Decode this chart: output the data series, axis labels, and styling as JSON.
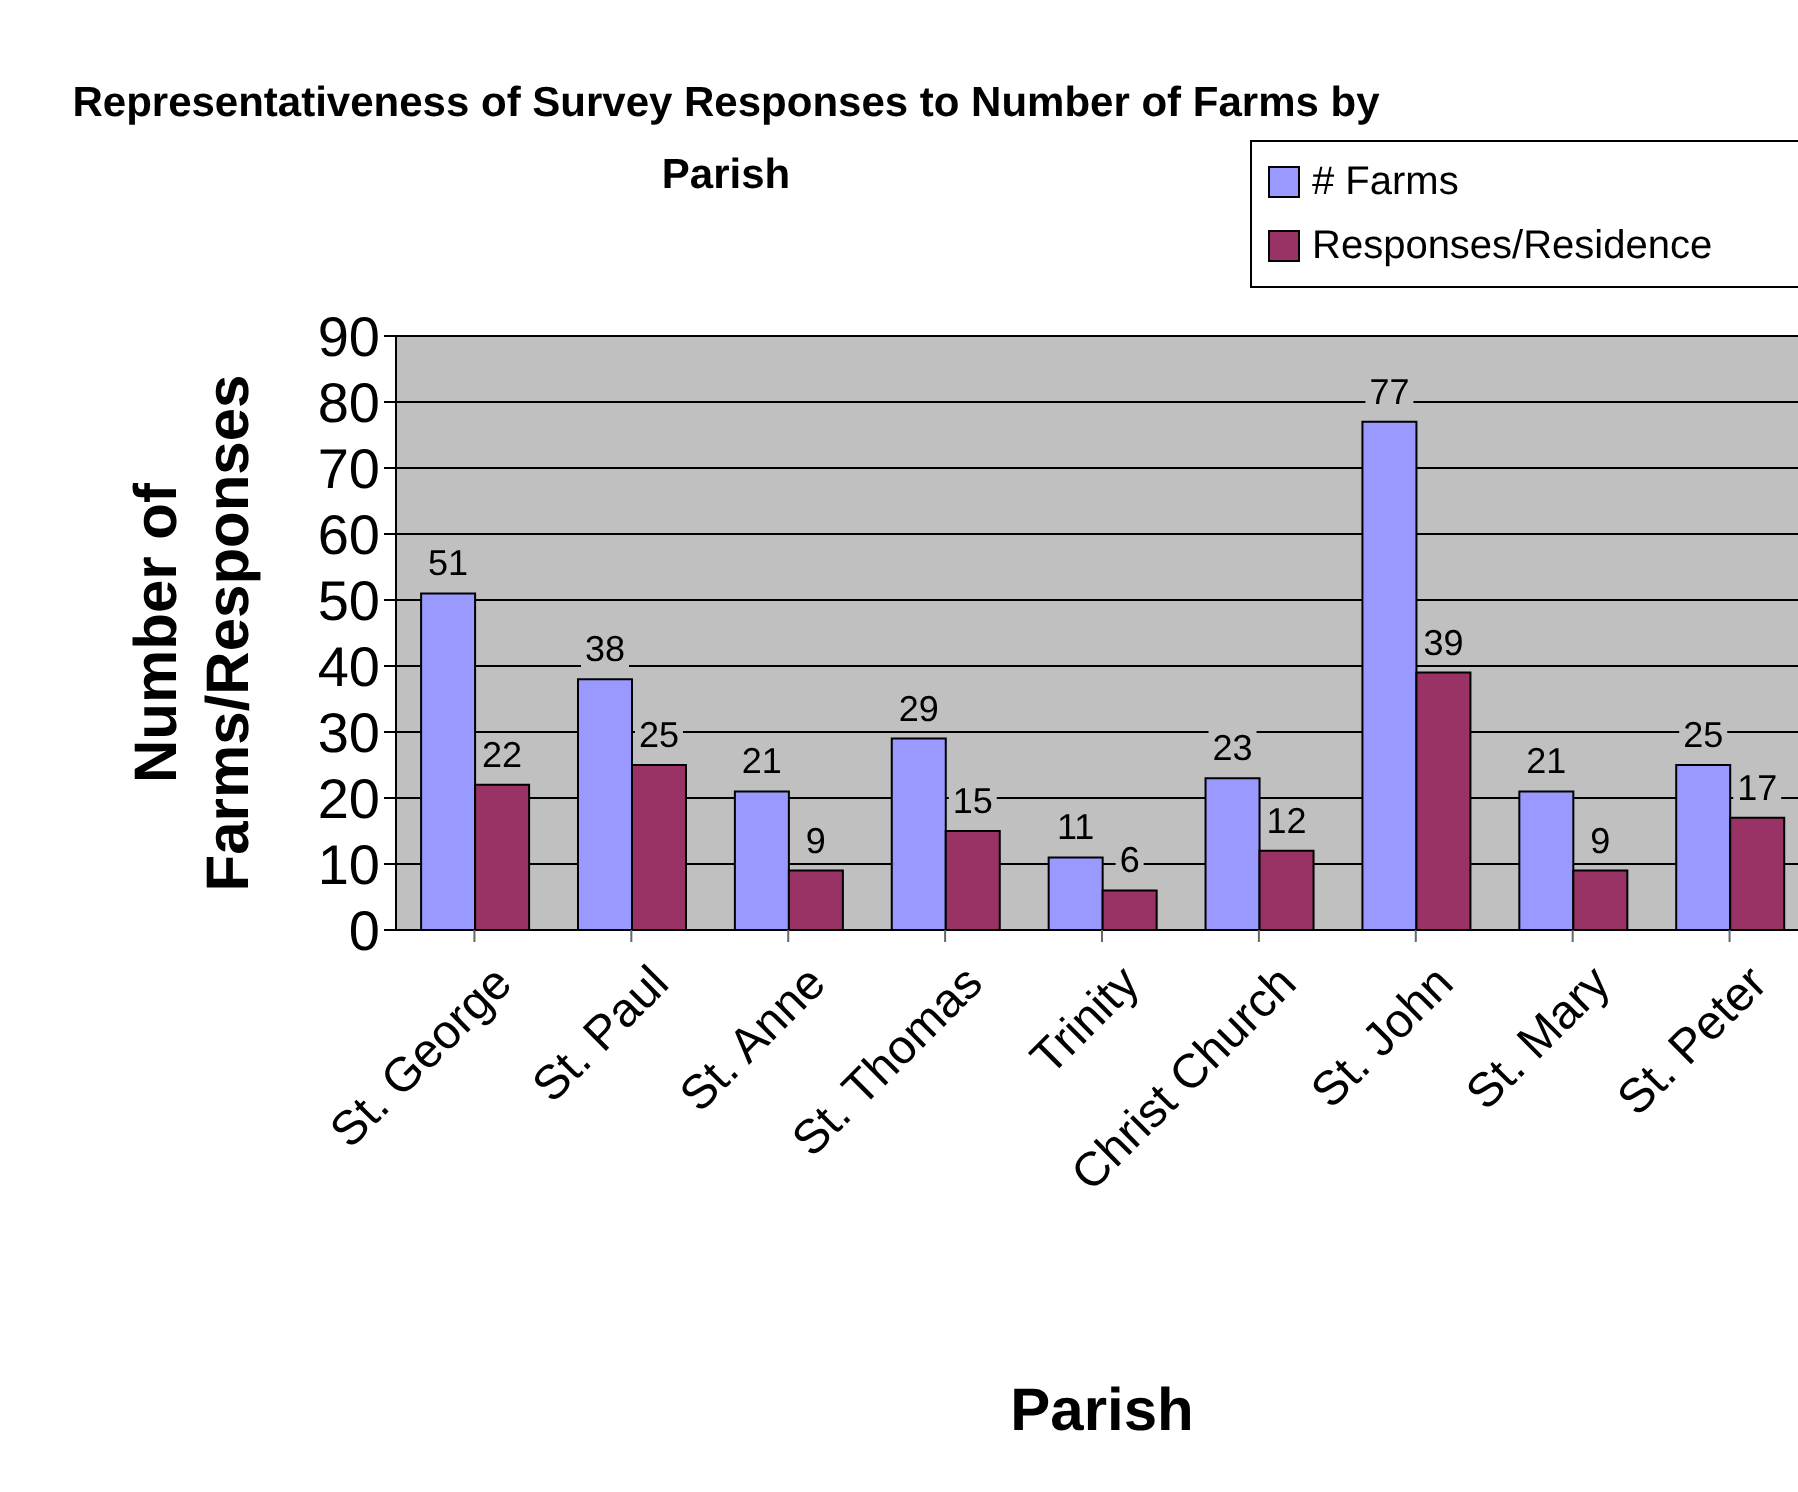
{
  "chart_data": {
    "type": "bar",
    "title": "Representativeness of Survey Responses to Number of Farms by Parish",
    "xlabel": "Parish",
    "ylabel": "Number of Farms/Responses",
    "categories": [
      "St. George",
      "St. Paul",
      "St. Anne",
      "St. Thomas",
      "Trinity",
      "Christ Church",
      "St. John",
      "St. Mary",
      "St. Peter"
    ],
    "series": [
      {
        "name": "# Farms",
        "color": "#9999ff",
        "values": [
          51,
          38,
          21,
          29,
          11,
          23,
          77,
          21,
          25
        ]
      },
      {
        "name": "Responses/Residence",
        "color": "#993366",
        "values": [
          22,
          25,
          9,
          15,
          6,
          12,
          39,
          9,
          17
        ]
      }
    ],
    "ylim": [
      0,
      90
    ],
    "yticks": [
      0,
      10,
      20,
      30,
      40,
      50,
      60,
      70,
      80,
      90
    ],
    "grid": "y",
    "legend": "top right",
    "data_labels": true
  }
}
